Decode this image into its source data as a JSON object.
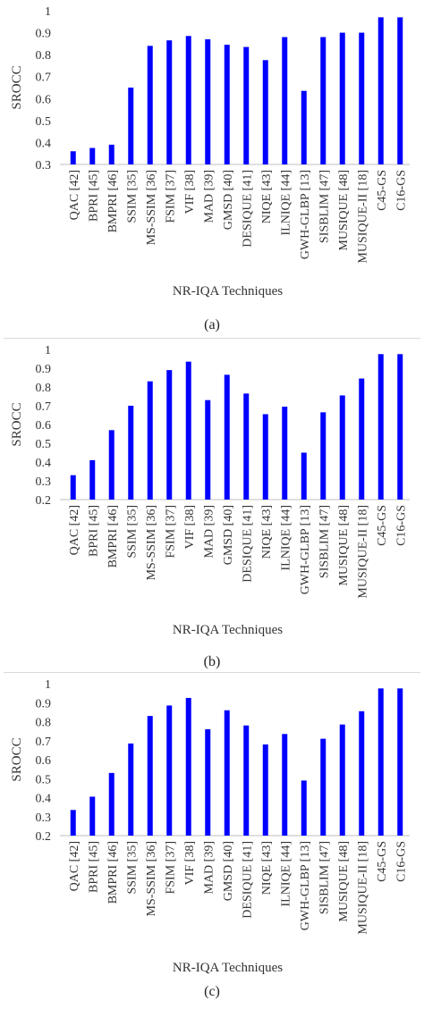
{
  "chart_data": [
    {
      "type": "bar",
      "ylabel": "SROCC",
      "xlabel": "NR-IQA Techniques",
      "caption": "(a)",
      "ylim": [
        0.3,
        1
      ],
      "yticks": [
        "0.3",
        "0.4",
        "0.5",
        "0.6",
        "0.7",
        "0.8",
        "0.9",
        "1"
      ],
      "bar_color": "#0000ff",
      "categories": [
        "QAC [42]",
        "BPRI [45]",
        "BMPRI [46]",
        "SSIM [35]",
        "MS-SSIM [36]",
        "FSIM [37]",
        "VIF [38]",
        "MAD [39]",
        "GMSD [40]",
        "DESIQUE [41]",
        "NIQE [43]",
        "ILNIQE [44]",
        "GWH-GLBP [13]",
        "SISBLIM [47]",
        "MUSIQUE [48]",
        "MUSIQUE-II [18]",
        "C45-GS",
        "C16-GS"
      ],
      "values": [
        0.36,
        0.375,
        0.39,
        0.65,
        0.84,
        0.865,
        0.885,
        0.87,
        0.845,
        0.835,
        0.775,
        0.88,
        0.635,
        0.88,
        0.9,
        0.9,
        0.97,
        0.97
      ]
    },
    {
      "type": "bar",
      "ylabel": "SROCC",
      "xlabel": "NR-IQA Techniques",
      "caption": "(b)",
      "ylim": [
        0.2,
        1
      ],
      "yticks": [
        "0.2",
        "0.3",
        "0.4",
        "0.5",
        "0.6",
        "0.7",
        "0.8",
        "0.9",
        "1"
      ],
      "bar_color": "#0000ff",
      "categories": [
        "QAC [42]",
        "BPRI [45]",
        "BMPRI [46]",
        "SSIM [35]",
        "MS-SSIM [36]",
        "FSIM [37]",
        "VIF [38]",
        "MAD [39]",
        "GMSD [40]",
        "DESIQUE [41]",
        "NIQE [43]",
        "ILNIQE [44]",
        "GWH-GLBP [13]",
        "SISBLIM [47]",
        "MUSIQUE [48]",
        "MUSIQUE-II [18]",
        "C45-GS",
        "C16-GS"
      ],
      "values": [
        0.33,
        0.41,
        0.57,
        0.7,
        0.83,
        0.89,
        0.935,
        0.73,
        0.865,
        0.765,
        0.655,
        0.695,
        0.45,
        0.665,
        0.755,
        0.845,
        0.975,
        0.975
      ]
    },
    {
      "type": "bar",
      "ylabel": "SROCC",
      "xlabel": "NR-IQA Techniques",
      "caption": "(c)",
      "ylim": [
        0.2,
        1
      ],
      "yticks": [
        "0.2",
        "0.3",
        "0.4",
        "0.5",
        "0.6",
        "0.7",
        "0.8",
        "0.9",
        "1"
      ],
      "bar_color": "#0000ff",
      "categories": [
        "QAC [42]",
        "BPRI [45]",
        "BMPRI [46]",
        "SSIM [35]",
        "MS-SSIM [36]",
        "FSIM [37]",
        "VIF [38]",
        "MAD [39]",
        "GMSD [40]",
        "DESIQUE [41]",
        "NIQE [43]",
        "ILNIQE [44]",
        "GWH-GLBP [13]",
        "SISBLIM [47]",
        "MUSIQUE [48]",
        "MUSIQUE-II [18]",
        "C45-GS",
        "C16-GS"
      ],
      "values": [
        0.335,
        0.405,
        0.53,
        0.685,
        0.83,
        0.885,
        0.925,
        0.76,
        0.86,
        0.78,
        0.68,
        0.735,
        0.49,
        0.71,
        0.785,
        0.855,
        0.975,
        0.975
      ]
    }
  ]
}
